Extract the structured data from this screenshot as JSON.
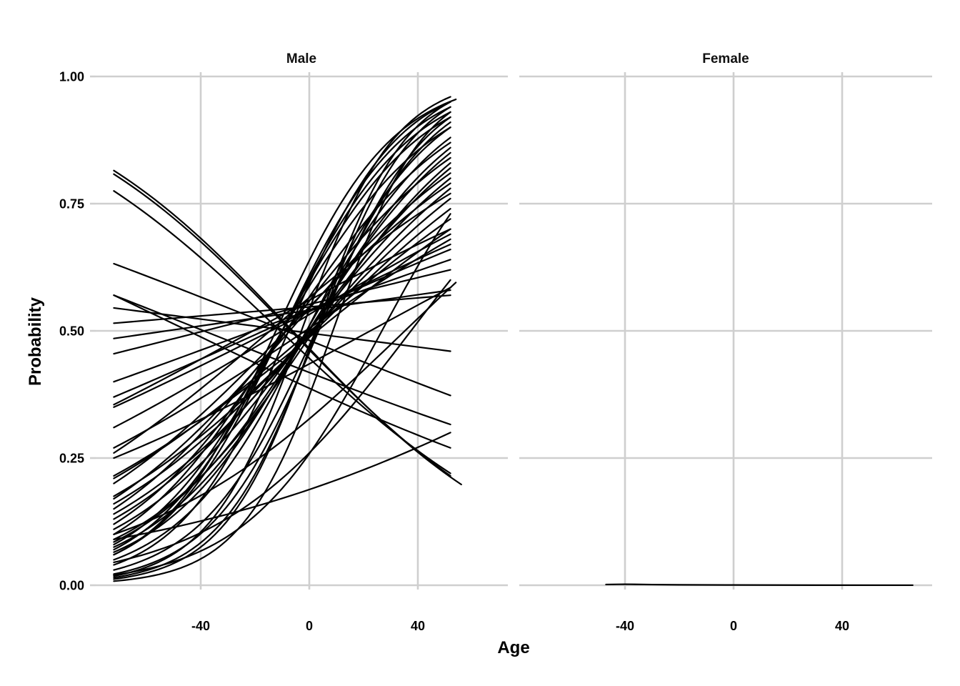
{
  "chart_data": {
    "type": "line",
    "facets": [
      "Male",
      "Female"
    ],
    "xlabel": "Age",
    "ylabel": "Probability",
    "x_ticks": [
      -40,
      0,
      40
    ],
    "y_ticks": [
      "0.00",
      "0.25",
      "0.50",
      "0.75",
      "1.00"
    ],
    "ylim": [
      0,
      1
    ],
    "xlim": [
      -78,
      73
    ],
    "grid": true,
    "legend": "none",
    "line_color": "#000000",
    "grid_color": "#cfcfcf",
    "male": {
      "x_range": [
        -72,
        52
      ],
      "curve_count": 50,
      "curves": [
        {
          "p_start": 0.008,
          "p_end": 0.93
        },
        {
          "p_start": 0.012,
          "p_end": 0.95
        },
        {
          "p_start": 0.015,
          "p_end": 0.94
        },
        {
          "p_start": 0.018,
          "p_end": 0.96
        },
        {
          "p_start": 0.022,
          "p_end": 0.92
        },
        {
          "p_start": 0.03,
          "p_end": 0.91
        },
        {
          "p_start": 0.04,
          "p_end": 0.95
        },
        {
          "p_start": 0.05,
          "p_end": 0.9
        },
        {
          "p_start": 0.06,
          "p_end": 0.94
        },
        {
          "p_start": 0.065,
          "p_end": 0.88
        },
        {
          "p_start": 0.07,
          "p_end": 0.93
        },
        {
          "p_start": 0.075,
          "p_end": 0.86
        },
        {
          "p_start": 0.08,
          "p_end": 0.92
        },
        {
          "p_start": 0.085,
          "p_end": 0.85
        },
        {
          "p_start": 0.09,
          "p_end": 0.83
        },
        {
          "p_start": 0.1,
          "p_end": 0.9
        },
        {
          "p_start": 0.11,
          "p_end": 0.82
        },
        {
          "p_start": 0.12,
          "p_end": 0.87
        },
        {
          "p_start": 0.13,
          "p_end": 0.8
        },
        {
          "p_start": 0.14,
          "p_end": 0.78
        },
        {
          "p_start": 0.15,
          "p_end": 0.84
        },
        {
          "p_start": 0.16,
          "p_end": 0.76
        },
        {
          "p_start": 0.17,
          "p_end": 0.81
        },
        {
          "p_start": 0.175,
          "p_end": 0.74
        },
        {
          "p_start": 0.2,
          "p_end": 0.79
        },
        {
          "p_start": 0.21,
          "p_end": 0.72
        },
        {
          "p_start": 0.215,
          "p_end": 0.7
        },
        {
          "p_start": 0.26,
          "p_end": 0.77
        },
        {
          "p_start": 0.27,
          "p_end": 0.68
        },
        {
          "p_start": 0.31,
          "p_end": 0.69
        },
        {
          "p_start": 0.35,
          "p_end": 0.67
        },
        {
          "p_start": 0.355,
          "p_end": 0.7
        },
        {
          "p_start": 0.37,
          "p_end": 0.66
        },
        {
          "p_start": 0.4,
          "p_end": 0.64
        },
        {
          "p_start": 0.455,
          "p_end": 0.62
        },
        {
          "p_start": 0.485,
          "p_end": 0.58
        },
        {
          "p_start": 0.515,
          "p_end": 0.57
        },
        {
          "p_start": 0.09,
          "p_end": 0.3,
          "curved": true
        },
        {
          "p_start": 0.545,
          "p_end": 0.46
        },
        {
          "p_start": 0.57,
          "p_end": 0.316
        },
        {
          "p_start": 0.57,
          "p_end": 0.27
        },
        {
          "p_start": 0.632,
          "p_end": 0.373
        },
        {
          "p_start": 0.775,
          "p_end": 0.22
        },
        {
          "p_start": 0.808,
          "p_end": 0.215
        },
        {
          "p_start": 0.815,
          "p_end": 0.198,
          "x_end": 56
        },
        {
          "p_start": 0.06,
          "p_end": 0.955,
          "x_end": 54
        },
        {
          "p_start": 0.1,
          "p_end": 0.595,
          "x_end": 54
        },
        {
          "p_start": 0.02,
          "p_end": 0.73
        },
        {
          "p_start": 0.045,
          "p_end": 0.6
        },
        {
          "p_start": 0.25,
          "p_end": 0.585
        }
      ]
    },
    "female": {
      "x_range": [
        -47,
        66
      ],
      "curve_count": 1,
      "curves": [
        {
          "points": [
            [
              -47,
              0.0015
            ],
            [
              -40,
              0.002
            ],
            [
              -30,
              0.0013
            ],
            [
              -20,
              0.0009
            ],
            [
              0,
              0.0005
            ],
            [
              30,
              0.0002
            ],
            [
              66,
              0.0001
            ]
          ]
        }
      ]
    }
  }
}
